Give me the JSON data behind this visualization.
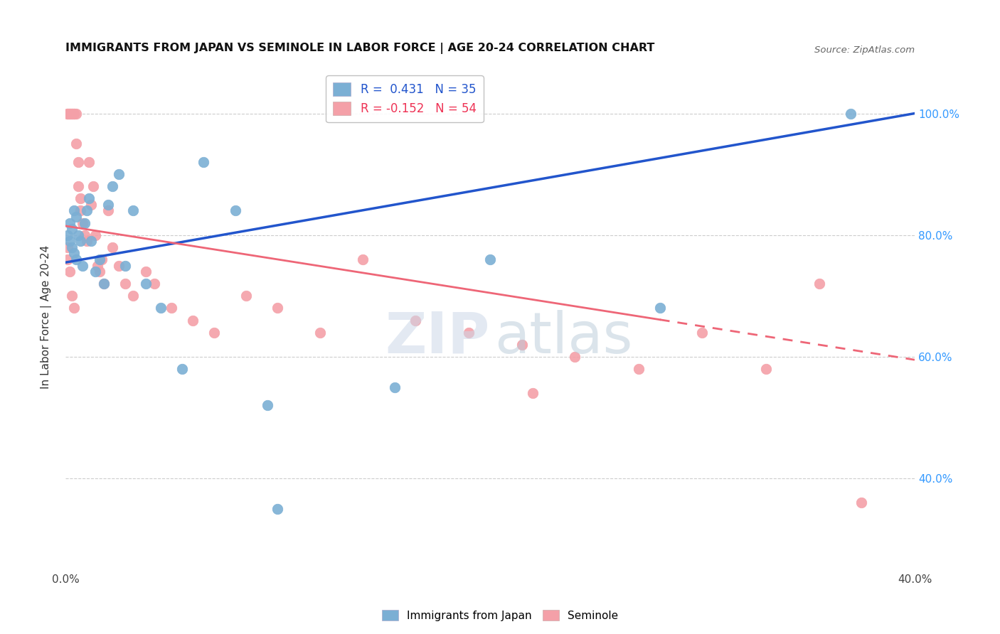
{
  "title": "IMMIGRANTS FROM JAPAN VS SEMINOLE IN LABOR FORCE | AGE 20-24 CORRELATION CHART",
  "source": "Source: ZipAtlas.com",
  "ylabel": "In Labor Force | Age 20-24",
  "xlim": [
    0.0,
    0.4
  ],
  "ylim": [
    0.25,
    1.08
  ],
  "blue_color": "#7BAFD4",
  "pink_color": "#F4A0A8",
  "blue_line_color": "#2255CC",
  "pink_line_color": "#EE6677",
  "pink_line_solid_end": 0.28,
  "blue_r": 0.431,
  "blue_n": 35,
  "pink_r": -0.152,
  "pink_n": 54,
  "japan_x": [
    0.001,
    0.002,
    0.002,
    0.003,
    0.003,
    0.004,
    0.004,
    0.005,
    0.005,
    0.006,
    0.007,
    0.008,
    0.009,
    0.01,
    0.011,
    0.012,
    0.014,
    0.016,
    0.018,
    0.02,
    0.022,
    0.025,
    0.028,
    0.032,
    0.038,
    0.045,
    0.055,
    0.065,
    0.08,
    0.095,
    0.1,
    0.155,
    0.2,
    0.28,
    0.37
  ],
  "japan_y": [
    0.8,
    0.82,
    0.79,
    0.81,
    0.78,
    0.84,
    0.77,
    0.83,
    0.76,
    0.8,
    0.79,
    0.75,
    0.82,
    0.84,
    0.86,
    0.79,
    0.74,
    0.76,
    0.72,
    0.85,
    0.88,
    0.9,
    0.75,
    0.84,
    0.72,
    0.68,
    0.58,
    0.92,
    0.84,
    0.52,
    0.35,
    0.55,
    0.76,
    0.68,
    1.0
  ],
  "seminole_x": [
    0.001,
    0.001,
    0.002,
    0.002,
    0.003,
    0.003,
    0.004,
    0.004,
    0.005,
    0.005,
    0.006,
    0.006,
    0.007,
    0.007,
    0.008,
    0.009,
    0.01,
    0.011,
    0.012,
    0.013,
    0.014,
    0.015,
    0.016,
    0.017,
    0.018,
    0.02,
    0.022,
    0.025,
    0.028,
    0.032,
    0.038,
    0.042,
    0.05,
    0.06,
    0.07,
    0.085,
    0.1,
    0.12,
    0.14,
    0.165,
    0.19,
    0.215,
    0.24,
    0.27,
    0.3,
    0.33,
    0.355,
    0.375,
    0.001,
    0.001,
    0.002,
    0.003,
    0.004,
    0.22
  ],
  "seminole_y": [
    1.0,
    1.0,
    1.0,
    1.0,
    1.0,
    1.0,
    1.0,
    1.0,
    1.0,
    0.95,
    0.92,
    0.88,
    0.86,
    0.84,
    0.82,
    0.8,
    0.79,
    0.92,
    0.85,
    0.88,
    0.8,
    0.75,
    0.74,
    0.76,
    0.72,
    0.84,
    0.78,
    0.75,
    0.72,
    0.7,
    0.74,
    0.72,
    0.68,
    0.66,
    0.64,
    0.7,
    0.68,
    0.64,
    0.76,
    0.66,
    0.64,
    0.62,
    0.6,
    0.58,
    0.64,
    0.58,
    0.72,
    0.36,
    0.78,
    0.76,
    0.74,
    0.7,
    0.68,
    0.54
  ]
}
